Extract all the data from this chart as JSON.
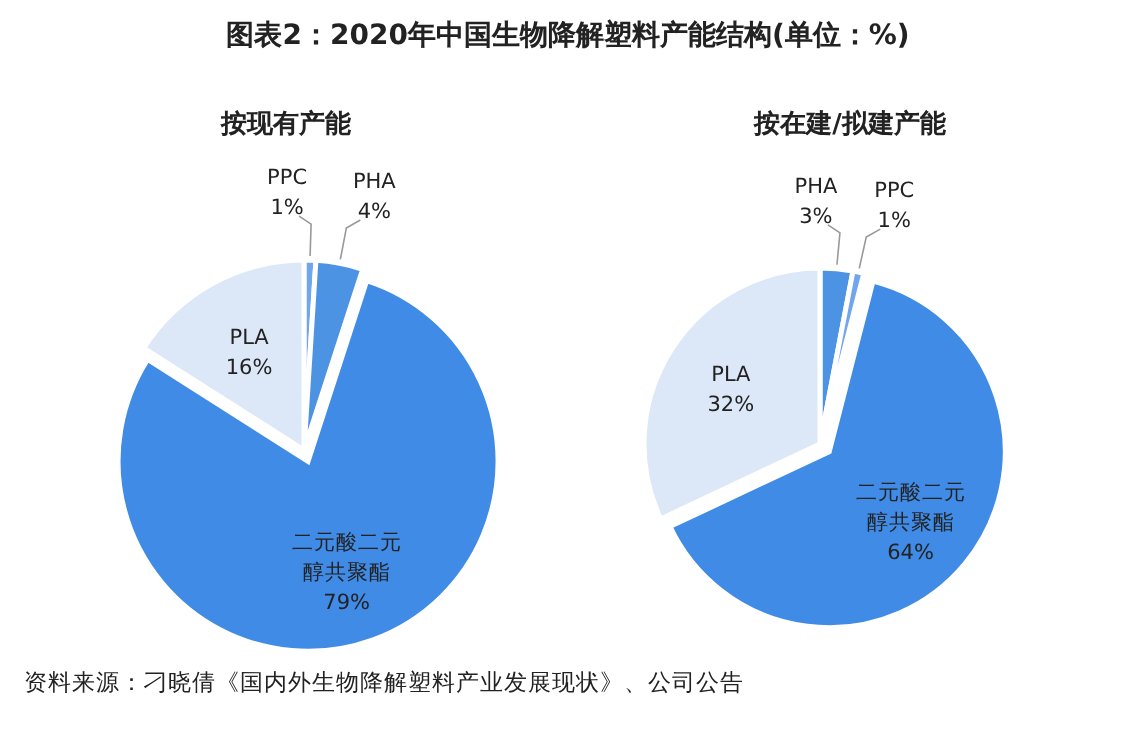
{
  "chart_data": [
    {
      "type": "pie",
      "title": "图表2：2020年中国生物降解塑料产能结构(单位：%)",
      "subtitle": "按现有产能",
      "categories": [
        "PPC",
        "PHA",
        "二元酸二元醇共聚酯",
        "PLA"
      ],
      "values": [
        1,
        4,
        79,
        16
      ],
      "value_labels": [
        "1%",
        "4%",
        "79%",
        "16%"
      ],
      "colors": [
        "#6fa6ec",
        "#4d93e4",
        "#3f8be6",
        "#dce8f8"
      ]
    },
    {
      "type": "pie",
      "subtitle": "按在建/拟建产能",
      "categories": [
        "PHA",
        "PPC",
        "二元酸二元醇共聚酯",
        "PLA"
      ],
      "values": [
        3,
        1,
        64,
        32
      ],
      "value_labels": [
        "3%",
        "1%",
        "64%",
        "32%"
      ],
      "colors": [
        "#4d93e4",
        "#6fa6ec",
        "#3f8be6",
        "#dce8f8"
      ],
      "annotations": [
        "资料来源：刁晓倩《国内外生物降解塑料产业发展现状》、公司公告"
      ]
    }
  ]
}
